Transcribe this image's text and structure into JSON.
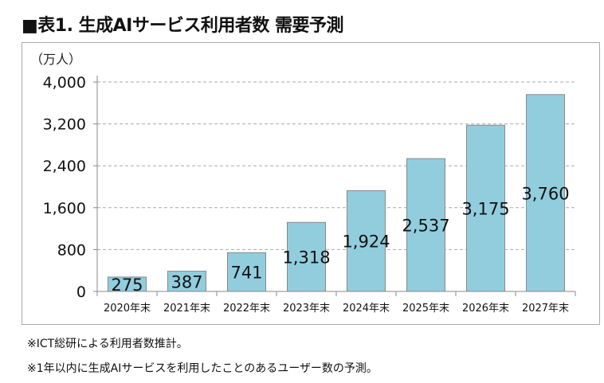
{
  "title": "■表1. 生成AIサービス利用者数 需要予測",
  "notes": [
    "※ICT総研による利用者数推計。",
    "※1年以内に生成AIサービスを利用したことのあるユーザー数の予測。"
  ],
  "colors": {
    "bar": "#92CDDD",
    "bar_border": "#8a8a8a",
    "grid": "#aaaaaa"
  },
  "chart_data": {
    "type": "bar",
    "ylabel": "（万人）",
    "categories": [
      "2020年末",
      "2021年末",
      "2022年末",
      "2023年末",
      "2024年末",
      "2025年末",
      "2026年末",
      "2027年末"
    ],
    "values": [
      275,
      387,
      741,
      1318,
      1924,
      2537,
      3175,
      3760
    ],
    "data_labels": [
      "275",
      "387",
      "741",
      "1,318",
      "1,924",
      "2,537",
      "3,175",
      "3,760"
    ],
    "ylim": [
      0,
      4000
    ],
    "yticks": [
      0,
      800,
      1600,
      2400,
      3200,
      4000
    ],
    "ytick_labels": [
      "0",
      "800",
      "1,600",
      "2,400",
      "3,200",
      "4,000"
    ],
    "grid": "horizontal dashed"
  }
}
